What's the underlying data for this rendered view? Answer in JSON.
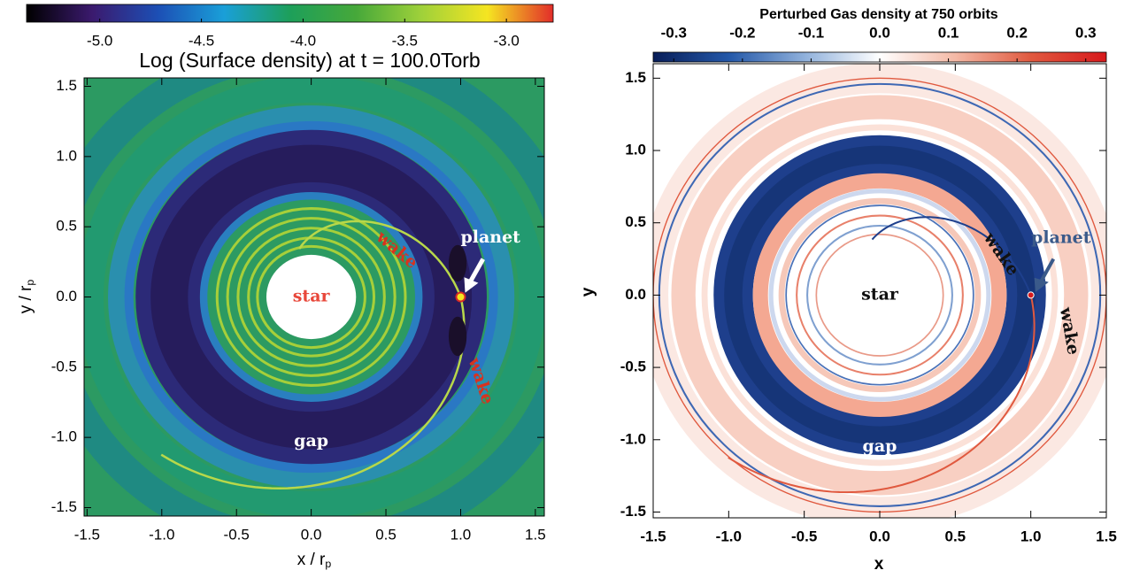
{
  "chart_data": [
    {
      "type": "density-map",
      "title": "Log (Surface density) at t = 100.0Torb",
      "xlabel": {
        "text": "x / r",
        "sub": "p"
      },
      "ylabel": {
        "text": "y / r",
        "sub": "p"
      },
      "xlim": [
        -1.52,
        1.56
      ],
      "ylim": [
        -1.56,
        1.56
      ],
      "xticks": [
        -1.5,
        {
          "value": -1,
          "label": "-1.0"
        },
        -0.5,
        {
          "value": 0,
          "label": "0.0"
        },
        0.5,
        {
          "value": 1,
          "label": "1.0"
        },
        1.5
      ],
      "yticks": [
        -1.5,
        {
          "value": -1,
          "label": "-1.0"
        },
        -0.5,
        {
          "value": 0,
          "label": "0.0"
        },
        0.5,
        {
          "value": 1,
          "label": "1.0"
        },
        1.5
      ],
      "colorbar": {
        "lim": [
          -5.36,
          -2.77
        ],
        "ticks": [
          {
            "value": -5,
            "label": "-5.0"
          },
          -4.5,
          {
            "value": -4,
            "label": "-4.0"
          },
          -3.5,
          {
            "value": -3,
            "label": "-3.0"
          }
        ],
        "colors": [
          "#000000",
          "#3b1a6e",
          "#1c4fb5",
          "#1a9fd8",
          "#1d9f5a",
          "#46a83a",
          "#9fd13a",
          "#f5e521",
          "#e22d2a"
        ]
      },
      "annotations": [
        {
          "text": "star",
          "color": "#e8473a"
        },
        {
          "text": "planet",
          "color": "#ffffff"
        },
        {
          "text": "wake",
          "color": "#d8321f"
        },
        {
          "text": "wake",
          "color": "#d8321f"
        },
        {
          "text": "gap",
          "color": "#ffffff"
        }
      ]
    },
    {
      "type": "density-map",
      "title": "Perturbed Gas density at 750 orbits",
      "xlabel": {
        "text": "x"
      },
      "ylabel": {
        "text": "y"
      },
      "xlim": [
        -1.5,
        1.5
      ],
      "ylim": [
        -1.54,
        1.6
      ],
      "xticks": [
        -1.5,
        {
          "value": -1,
          "label": "-1.0"
        },
        -0.5,
        {
          "value": 0,
          "label": "0.0"
        },
        0.5,
        {
          "value": 1,
          "label": "1.0"
        },
        1.5
      ],
      "yticks": [
        -1.5,
        {
          "value": -1,
          "label": "-1.0"
        },
        -0.5,
        {
          "value": 0,
          "label": "0.0"
        },
        0.5,
        {
          "value": 1,
          "label": "1.0"
        },
        1.5
      ],
      "colorbar": {
        "lim": [
          -0.33,
          0.33
        ],
        "ticks": [
          -0.3,
          -0.2,
          -0.1,
          {
            "value": 0,
            "label": "0.0"
          },
          0.1,
          0.2,
          0.3
        ],
        "colors": [
          "#081d58",
          "#2458a8",
          "#8fb0db",
          "#ffffff",
          "#f4b9a6",
          "#e0593f",
          "#d7191c"
        ]
      },
      "annotations": [
        {
          "text": "star",
          "color": "#111111"
        },
        {
          "text": "planet",
          "color": "#3a5a8a"
        },
        {
          "text": "wake",
          "color": "#111111"
        },
        {
          "text": "wake",
          "color": "#111111"
        },
        {
          "text": "gap",
          "color": "#ffffff"
        }
      ]
    }
  ]
}
